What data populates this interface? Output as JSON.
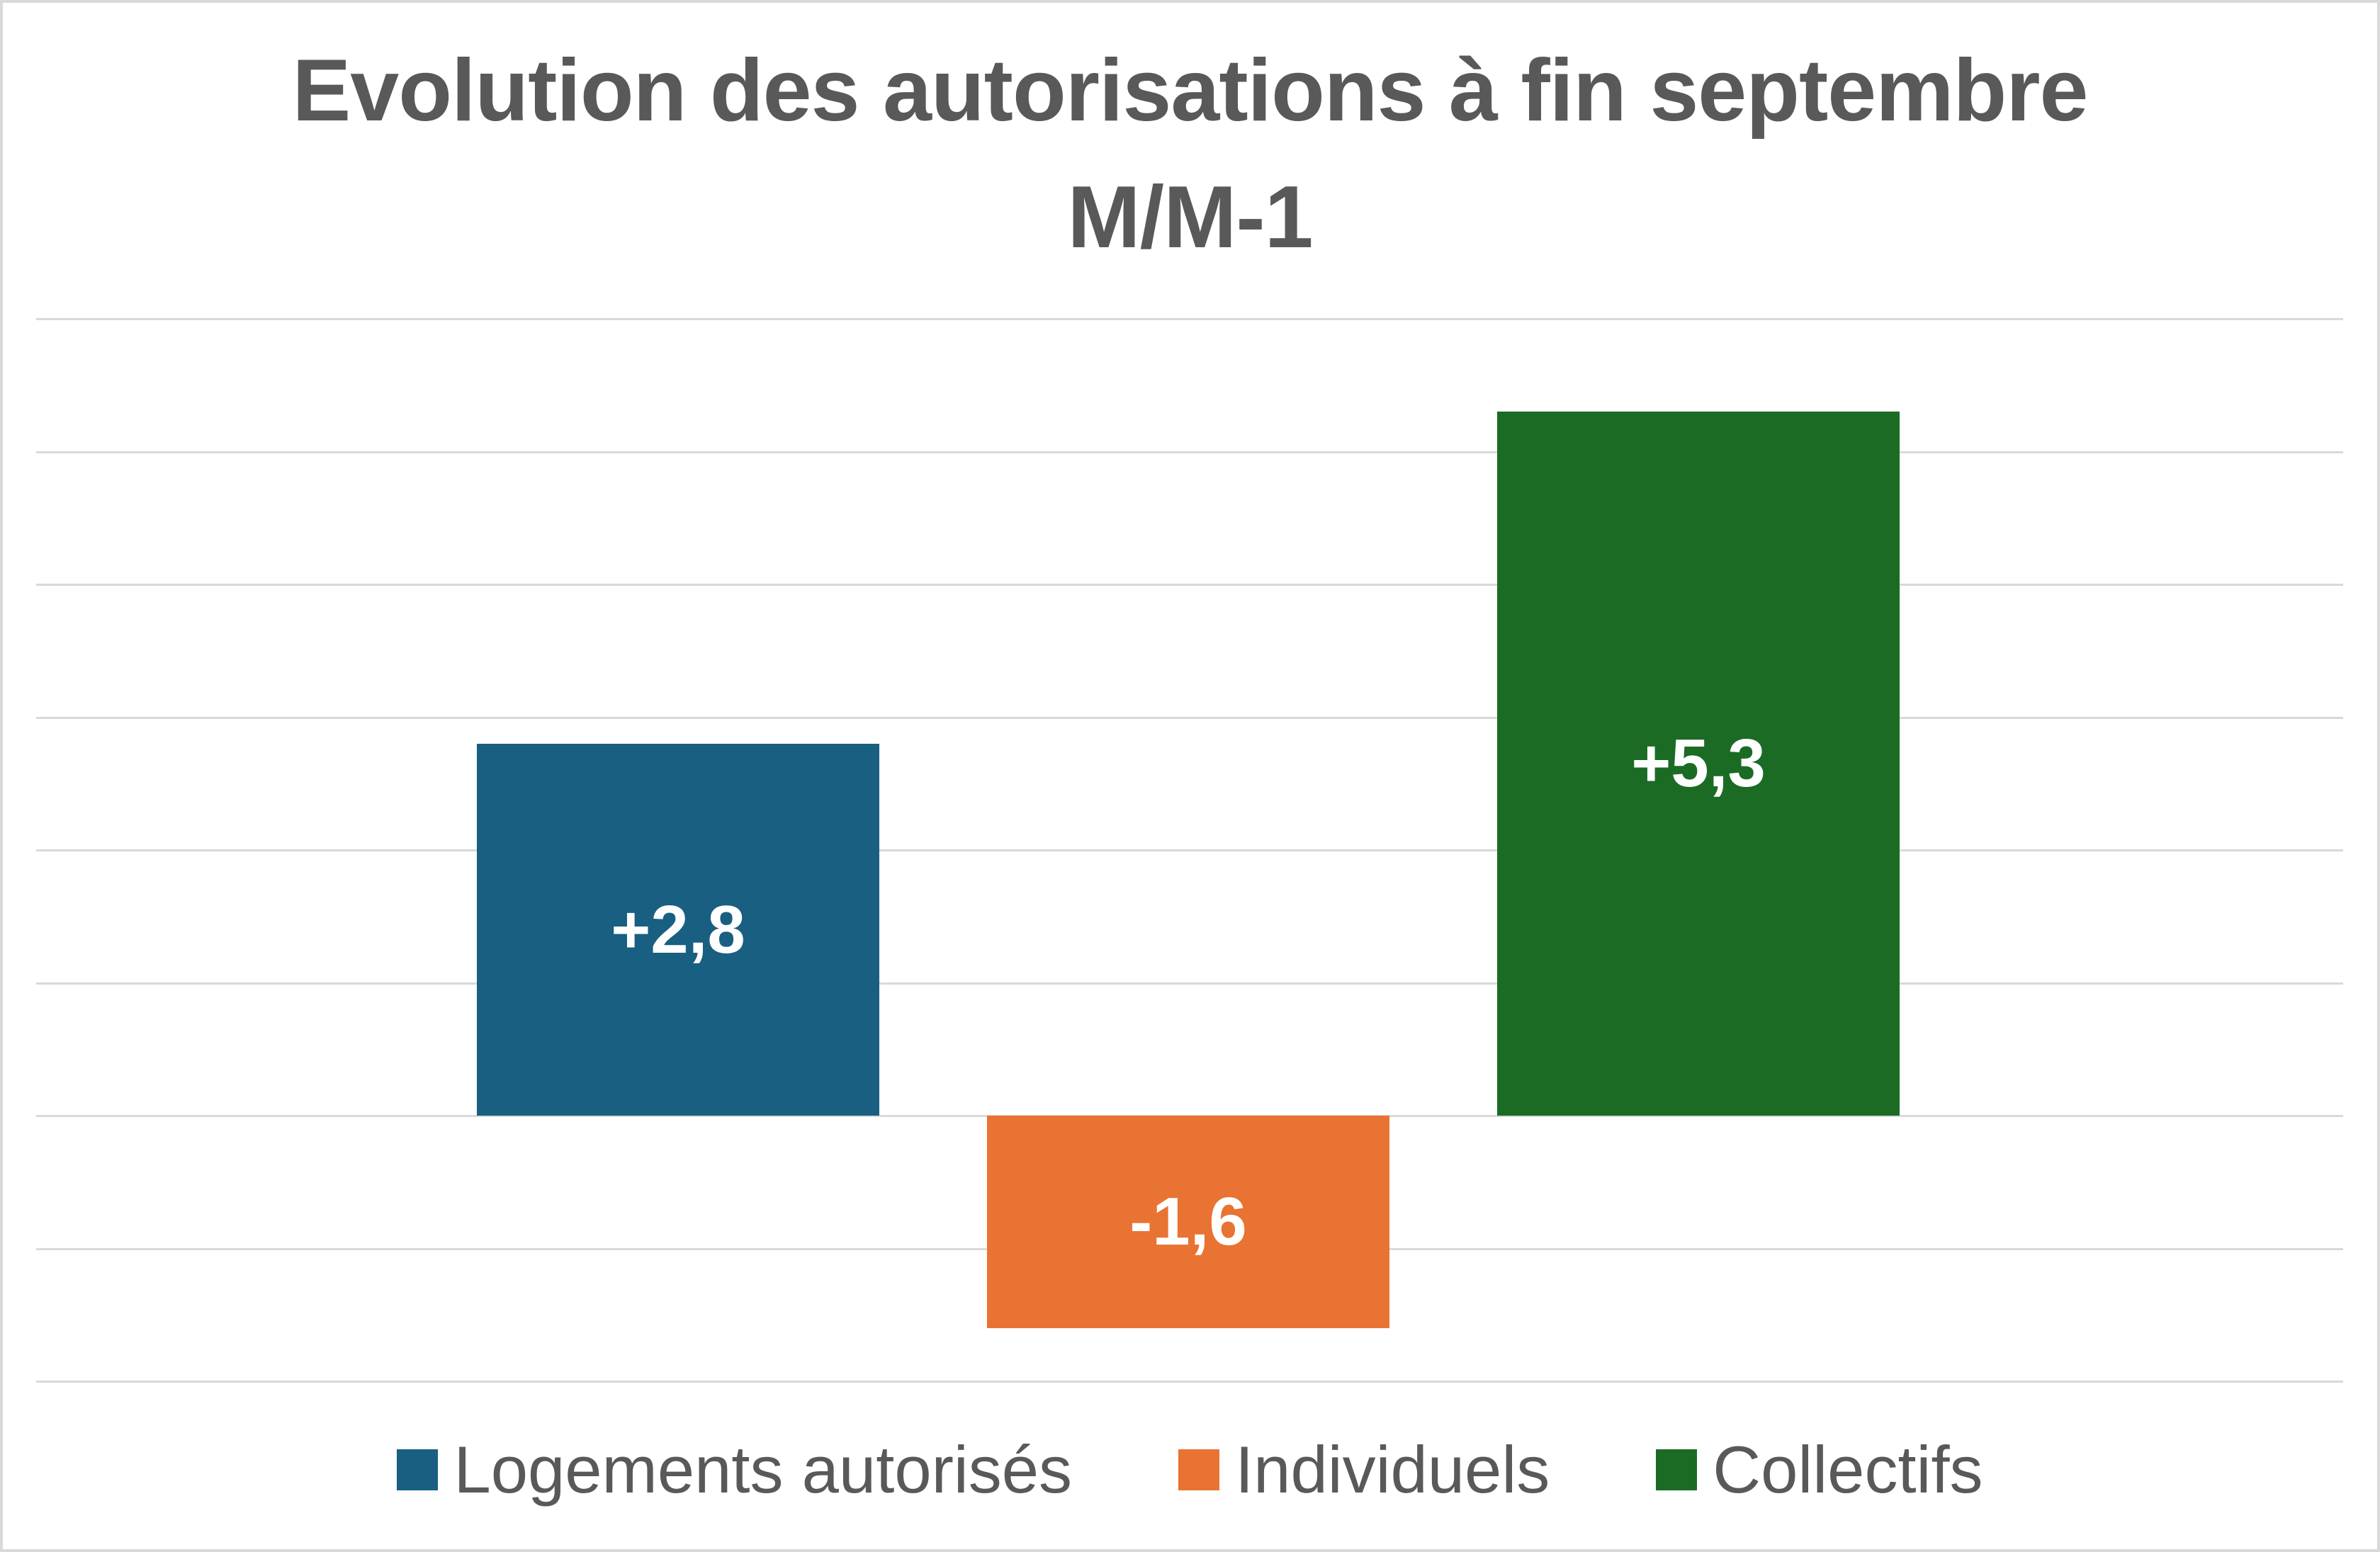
{
  "chart_data": {
    "type": "bar",
    "title": "Evolution des autorisations à fin septembre M/M-1",
    "title_lines": [
      "Evolution des autorisations à fin septembre",
      "M/M-1"
    ],
    "categories": [
      "Logements autorisés",
      "Individuels",
      "Collectifs"
    ],
    "values": [
      2.8,
      -1.6,
      5.3
    ],
    "data_labels": [
      "+2,8",
      "-1,6",
      "+5,3"
    ],
    "xlabel": "",
    "ylabel": "",
    "ylim": [
      -2,
      6
    ],
    "grid": true,
    "gridline_step": 1,
    "axis_tick_labels_visible": false,
    "legend_position": "bottom",
    "series": [
      {
        "name": "Logements autorisés",
        "values": [
          2.8
        ],
        "color": "#185F82"
      },
      {
        "name": "Individuels",
        "values": [
          -1.6
        ],
        "color": "#E87333"
      },
      {
        "name": "Collectifs",
        "values": [
          5.3
        ],
        "color": "#1B6B25"
      }
    ]
  },
  "colors": {
    "text": "#595959",
    "gridline": "#D9D9D9",
    "logements": "#185F82",
    "individuels": "#E87333",
    "collectifs": "#1B6B25"
  },
  "legend": {
    "items": [
      {
        "label": "Logements autorisés",
        "color": "#185F82"
      },
      {
        "label": "Individuels",
        "color": "#E87333"
      },
      {
        "label": "Collectifs",
        "color": "#1B6B25"
      }
    ]
  }
}
